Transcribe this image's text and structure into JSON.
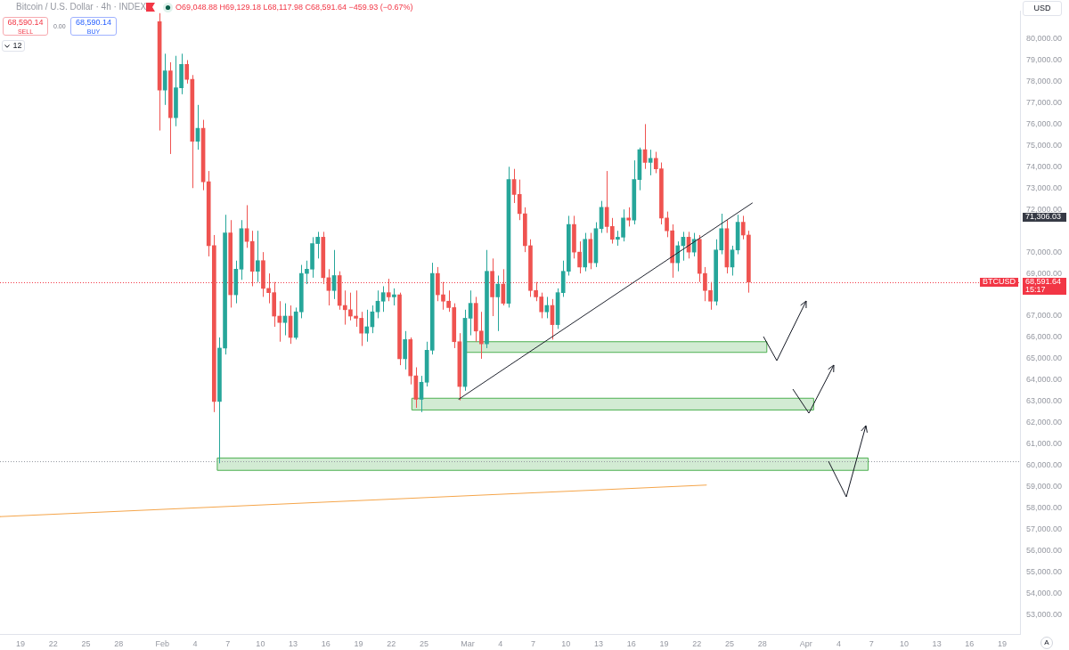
{
  "chart_data": {
    "type": "candlestick",
    "title": "Bitcoin / U.S. Dollar · 4h · INDEX",
    "subtitle": "O69,048.88 H69,129.18 L68,117.98 C68,591.64 −459.93 (−0.67%)",
    "x": [
      "--01-31T18:00",
      "--02-01T06:00",
      "--02-01T18:00",
      "--02-02T06:00",
      "--02-02T18:00",
      "--02-03T06:00",
      "--02-03T18:00",
      "--02-04T06:00",
      "--02-04T18:00",
      "--02-05T06:00",
      "--02-05T18:00",
      "--02-06T06:00",
      "--02-06T18:00",
      "--02-07T06:00",
      "--02-07T18:00",
      "--02-08T06:00",
      "--02-08T18:00",
      "--02-09T06:00",
      "--02-09T18:00",
      "--02-10T06:00",
      "--02-10T18:00",
      "--02-11T06:00",
      "--02-11T18:00",
      "--02-12T06:00",
      "--02-12T18:00",
      "--02-13T06:00",
      "--02-13T18:00",
      "--02-14T06:00",
      "--02-14T18:00",
      "--02-15T06:00",
      "--02-15T18:00",
      "--02-16T06:00",
      "--02-16T18:00",
      "--02-17T06:00",
      "--02-17T18:00",
      "--02-18T06:00",
      "--02-18T18:00",
      "--02-19T06:00",
      "--02-19T18:00",
      "--02-20T06:00",
      "--02-20T18:00",
      "--02-21T06:00",
      "--02-21T18:00",
      "--02-22T06:00",
      "--02-22T18:00",
      "--02-23T06:00",
      "--02-23T18:00",
      "--02-24T06:00",
      "--02-24T18:00",
      "--02-25T06:00",
      "--02-25T18:00",
      "--02-26T06:00",
      "--02-26T18:00",
      "--02-27T06:00",
      "--02-27T18:00",
      "--02-28T06:00",
      "--02-28T18:00",
      "--03-01T06:00",
      "--03-01T18:00",
      "--03-02T06:00",
      "--03-02T18:00",
      "--03-03T06:00",
      "--03-03T18:00",
      "--03-04T06:00",
      "--03-04T18:00",
      "--03-05T06:00",
      "--03-05T18:00",
      "--03-06T06:00",
      "--03-06T18:00",
      "--03-07T06:00",
      "--03-07T18:00",
      "--03-08T06:00",
      "--03-08T18:00",
      "--03-09T06:00",
      "--03-09T18:00",
      "--03-10T06:00",
      "--03-10T18:00",
      "--03-11T06:00",
      "--03-11T18:00",
      "--03-12T06:00",
      "--03-12T18:00",
      "--03-13T06:00",
      "--03-13T18:00",
      "--03-14T06:00",
      "--03-14T18:00",
      "--03-15T06:00",
      "--03-15T18:00",
      "--03-16T06:00",
      "--03-16T18:00",
      "--03-17T06:00",
      "--03-17T18:00",
      "--03-18T06:00",
      "--03-18T18:00",
      "--03-19T06:00",
      "--03-19T18:00",
      "--03-20T06:00",
      "--03-20T18:00",
      "--03-21T06:00",
      "--03-21T18:00",
      "--03-22T06:00",
      "--03-22T18:00",
      "--03-23T06:00",
      "--03-23T18:00",
      "--03-24T06:00",
      "--03-24T18:00",
      "--03-25T06:00",
      "--03-25T18:00",
      "--03-26T06:00",
      "--03-26T18:00"
    ],
    "ohlc": [
      [
        80800,
        81200,
        75700,
        77600
      ],
      [
        77600,
        79300,
        76900,
        78500
      ],
      [
        78500,
        78900,
        74600,
        76300
      ],
      [
        76300,
        79200,
        75900,
        77700
      ],
      [
        77700,
        79300,
        77400,
        78800
      ],
      [
        78800,
        79000,
        77900,
        78100
      ],
      [
        78100,
        78300,
        73000,
        75200
      ],
      [
        75200,
        76900,
        74800,
        75800
      ],
      [
        75800,
        76200,
        72900,
        73300
      ],
      [
        73300,
        73800,
        69800,
        70300
      ],
      [
        70300,
        70800,
        62500,
        63000
      ],
      [
        63000,
        66000,
        60100,
        65500
      ],
      [
        65500,
        71750,
        65200,
        70900
      ],
      [
        70900,
        71500,
        67400,
        68000
      ],
      [
        68000,
        69600,
        67600,
        69200
      ],
      [
        69200,
        71500,
        68700,
        71100
      ],
      [
        71100,
        72200,
        70200,
        70500
      ],
      [
        70500,
        71000,
        68400,
        69100
      ],
      [
        69100,
        71000,
        68600,
        69600
      ],
      [
        69600,
        70000,
        67900,
        68300
      ],
      [
        68300,
        69000,
        67600,
        68100
      ],
      [
        68100,
        68600,
        66500,
        67000
      ],
      [
        67000,
        67700,
        65800,
        66700
      ],
      [
        66700,
        67600,
        66100,
        67000
      ],
      [
        67000,
        67500,
        65700,
        66000
      ],
      [
        66000,
        67400,
        65900,
        67200
      ],
      [
        67200,
        69400,
        66900,
        69000
      ],
      [
        69000,
        69600,
        68500,
        69200
      ],
      [
        69200,
        70700,
        68800,
        70400
      ],
      [
        70400,
        70950,
        69700,
        70700
      ],
      [
        70700,
        70950,
        68500,
        68800
      ],
      [
        68800,
        69200,
        67500,
        68200
      ],
      [
        68200,
        70100,
        67800,
        68900
      ],
      [
        68900,
        69100,
        67300,
        67500
      ],
      [
        67500,
        68200,
        66600,
        67300
      ],
      [
        67300,
        68100,
        66800,
        67000
      ],
      [
        67000,
        68200,
        66500,
        66900
      ],
      [
        66900,
        67200,
        65600,
        66200
      ],
      [
        66200,
        67300,
        65800,
        66500
      ],
      [
        66500,
        67500,
        66200,
        67200
      ],
      [
        67200,
        68200,
        66900,
        67700
      ],
      [
        67700,
        68400,
        67200,
        68100
      ],
      [
        68100,
        68750,
        67700,
        67900
      ],
      [
        67900,
        68300,
        67500,
        68000
      ],
      [
        68000,
        68100,
        64700,
        65000
      ],
      [
        65000,
        66300,
        64500,
        65900
      ],
      [
        65900,
        66000,
        63800,
        64200
      ],
      [
        64200,
        64600,
        62700,
        63100
      ],
      [
        63100,
        64200,
        62500,
        63900
      ],
      [
        63900,
        65800,
        63700,
        65400
      ],
      [
        65400,
        69500,
        65200,
        69000
      ],
      [
        69000,
        69300,
        67700,
        68000
      ],
      [
        68000,
        68600,
        67300,
        67700
      ],
      [
        67700,
        68200,
        67200,
        67400
      ],
      [
        67400,
        67600,
        65500,
        65800
      ],
      [
        65800,
        66200,
        63050,
        63700
      ],
      [
        63700,
        67300,
        63500,
        66900
      ],
      [
        66900,
        68200,
        66100,
        67600
      ],
      [
        67600,
        67900,
        65800,
        66300
      ],
      [
        66300,
        67200,
        65000,
        65700
      ],
      [
        65700,
        70100,
        65500,
        69100
      ],
      [
        69100,
        69700,
        67000,
        67900
      ],
      [
        67900,
        68900,
        66300,
        68500
      ],
      [
        68500,
        69200,
        67500,
        67600
      ],
      [
        67600,
        74000,
        67400,
        73400
      ],
      [
        73400,
        73900,
        72300,
        72700
      ],
      [
        72700,
        73400,
        71500,
        71800
      ],
      [
        71800,
        72100,
        70000,
        70300
      ],
      [
        70300,
        70600,
        67900,
        68200
      ],
      [
        68200,
        68600,
        67700,
        67900
      ],
      [
        67900,
        68100,
        66900,
        67200
      ],
      [
        67200,
        67900,
        66900,
        67500
      ],
      [
        67500,
        67800,
        65900,
        66600
      ],
      [
        66600,
        68300,
        66400,
        68100
      ],
      [
        68100,
        69600,
        67900,
        69100
      ],
      [
        69100,
        71700,
        68900,
        71300
      ],
      [
        71300,
        71700,
        69700,
        70000
      ],
      [
        70000,
        70500,
        69000,
        69300
      ],
      [
        69300,
        70900,
        69100,
        70600
      ],
      [
        70600,
        70900,
        69200,
        69500
      ],
      [
        69500,
        71400,
        69300,
        71100
      ],
      [
        71100,
        72400,
        70900,
        72100
      ],
      [
        72100,
        73800,
        70900,
        71200
      ],
      [
        71200,
        71600,
        70400,
        70600
      ],
      [
        70600,
        71000,
        70300,
        70700
      ],
      [
        70700,
        72000,
        70500,
        71600
      ],
      [
        71600,
        72100,
        71200,
        71500
      ],
      [
        71500,
        74300,
        71300,
        73400
      ],
      [
        73400,
        74900,
        72900,
        74800
      ],
      [
        74800,
        76000,
        73900,
        74200
      ],
      [
        74200,
        74800,
        73600,
        74400
      ],
      [
        74400,
        74700,
        73700,
        73900
      ],
      [
        73900,
        74200,
        71300,
        71600
      ],
      [
        71600,
        71900,
        70700,
        71000
      ],
      [
        71000,
        71300,
        68800,
        69500
      ],
      [
        69500,
        70500,
        69100,
        70300
      ],
      [
        70300,
        70950,
        69600,
        70700
      ],
      [
        70700,
        70950,
        69700,
        70000
      ],
      [
        70000,
        70900,
        69800,
        70600
      ],
      [
        70600,
        70800,
        68600,
        69000
      ],
      [
        69000,
        69300,
        67700,
        68200
      ],
      [
        68200,
        68600,
        67300,
        67700
      ],
      [
        67700,
        70600,
        67500,
        70100
      ],
      [
        70100,
        71800,
        69900,
        71100
      ],
      [
        71100,
        71500,
        69000,
        69300
      ],
      [
        69300,
        70300,
        68900,
        70100
      ],
      [
        70100,
        71750,
        69900,
        71400
      ],
      [
        71400,
        71700,
        70600,
        70800
      ],
      [
        70800,
        71000,
        68100,
        68591.64
      ]
    ],
    "series": [
      {
        "type": "line",
        "x": [
          "--01-17T03:00",
          "--03-22T21:00"
        ],
        "values": [
          57600,
          59080
        ],
        "color": "#f5a54a"
      },
      {
        "type": "line",
        "x": [
          "--02-28T04:00",
          "--03-27T02:00"
        ],
        "values": [
          63100,
          72300
        ],
        "color": "#1e222d"
      },
      {
        "type": "line",
        "x": [
          "--02-28T20:00",
          "--03-28T10:00"
        ],
        "values": [
          null,
          null
        ],
        "lower": [
          65300,
          65300
        ],
        "upper": [
          65800,
          65800
        ],
        "color": "#4caf50"
      },
      {
        "type": "line",
        "x": [
          "--02-23T21:00",
          "--04-01T17:00"
        ],
        "values": [
          null,
          null
        ],
        "lower": [
          62600,
          62600
        ],
        "upper": [
          63150,
          63150
        ],
        "color": "#4caf50"
      },
      {
        "type": "line",
        "x": [
          "--02-06T01:00",
          "--04-06T17:00"
        ],
        "values": [
          null,
          null
        ],
        "lower": [
          59770,
          59770
        ],
        "upper": [
          60350,
          60350
        ],
        "color": "#4caf50"
      }
    ],
    "xlim": [
      "--01-17T03:00",
      "--04-20T15:00"
    ],
    "xticks": [
      {
        "value": "--01-19",
        "label": "19"
      },
      {
        "value": "--01-22",
        "label": "22"
      },
      {
        "value": "--01-25",
        "label": "25"
      },
      {
        "value": "--01-28",
        "label": "28"
      },
      {
        "value": "--02-01",
        "label": "Feb"
      },
      {
        "value": "--02-04",
        "label": "4"
      },
      {
        "value": "--02-07",
        "label": "7"
      },
      {
        "value": "--02-10",
        "label": "10"
      },
      {
        "value": "--02-13",
        "label": "13"
      },
      {
        "value": "--02-16",
        "label": "16"
      },
      {
        "value": "--02-19",
        "label": "19"
      },
      {
        "value": "--02-22",
        "label": "22"
      },
      {
        "value": "--02-25",
        "label": "25"
      },
      {
        "value": "--03-01",
        "label": "Mar"
      },
      {
        "value": "--03-04",
        "label": "4"
      },
      {
        "value": "--03-07",
        "label": "7"
      },
      {
        "value": "--03-10",
        "label": "10"
      },
      {
        "value": "--03-13",
        "label": "13"
      },
      {
        "value": "--03-16",
        "label": "16"
      },
      {
        "value": "--03-19",
        "label": "19"
      },
      {
        "value": "--03-22",
        "label": "22"
      },
      {
        "value": "--03-25",
        "label": "25"
      },
      {
        "value": "--03-28",
        "label": "28"
      },
      {
        "value": "--04-01",
        "label": "Apr"
      },
      {
        "value": "--04-04",
        "label": "4"
      },
      {
        "value": "--04-07",
        "label": "7"
      },
      {
        "value": "--04-10",
        "label": "10"
      },
      {
        "value": "--04-13",
        "label": "13"
      },
      {
        "value": "--04-16",
        "label": "16"
      },
      {
        "value": "--04-19",
        "label": "19"
      }
    ],
    "ylim": [
      52100,
      81300
    ],
    "yticks": [
      {
        "value": 53000,
        "label": "53,000.00"
      },
      {
        "value": 54000,
        "label": "54,000.00"
      },
      {
        "value": 55000,
        "label": "55,000.00"
      },
      {
        "value": 56000,
        "label": "56,000.00"
      },
      {
        "value": 57000,
        "label": "57,000.00"
      },
      {
        "value": 58000,
        "label": "58,000.00"
      },
      {
        "value": 59000,
        "label": "59,000.00"
      },
      {
        "value": 60000,
        "label": "60,000.00"
      },
      {
        "value": 61000,
        "label": "61,000.00"
      },
      {
        "value": 62000,
        "label": "62,000.00"
      },
      {
        "value": 63000,
        "label": "63,000.00"
      },
      {
        "value": 64000,
        "label": "64,000.00"
      },
      {
        "value": 65000,
        "label": "65,000.00"
      },
      {
        "value": 66000,
        "label": "66,000.00"
      },
      {
        "value": 67000,
        "label": "67,000.00"
      },
      {
        "value": 69000,
        "label": "69,000.00"
      },
      {
        "value": 70000,
        "label": "70,000.00"
      },
      {
        "value": 72000,
        "label": "72,000.00"
      },
      {
        "value": 73000,
        "label": "73,000.00"
      },
      {
        "value": 74000,
        "label": "74,000.00"
      },
      {
        "value": 75000,
        "label": "75,000.00"
      },
      {
        "value": 76000,
        "label": "76,000.00"
      },
      {
        "value": 77000,
        "label": "77,000.00"
      },
      {
        "value": 78000,
        "label": "78,000.00"
      },
      {
        "value": 79000,
        "label": "79,000.00"
      },
      {
        "value": 80000,
        "label": "80,000.00"
      }
    ],
    "ref_lines": [
      {
        "axis": "y",
        "value": 68591.64,
        "label": "BTCUSD",
        "color": "#f23645",
        "line_style": "dotted"
      },
      {
        "axis": "y",
        "value": 60180,
        "color": "#9598a1",
        "line_style": "dotted"
      }
    ],
    "annotations": [
      "68,590.14",
      "SELL",
      "0.00",
      "68,590.14",
      "BUY",
      "12",
      "USD",
      "A",
      "71,306.03",
      "68,591.64",
      "15:17"
    ]
  }
}
